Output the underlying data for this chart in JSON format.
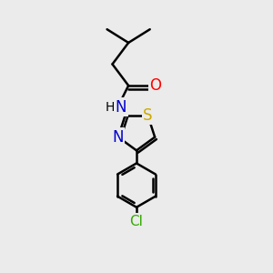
{
  "background_color": "#ebebeb",
  "line_color": "#000000",
  "bond_width": 1.8,
  "atoms": {
    "O": {
      "color": "#ff0000"
    },
    "N": {
      "color": "#0000cc"
    },
    "S": {
      "color": "#ccaa00"
    },
    "Cl": {
      "color": "#33aa00"
    },
    "H": {
      "color": "#000000"
    }
  },
  "figsize": [
    3.0,
    3.0
  ],
  "dpi": 100
}
